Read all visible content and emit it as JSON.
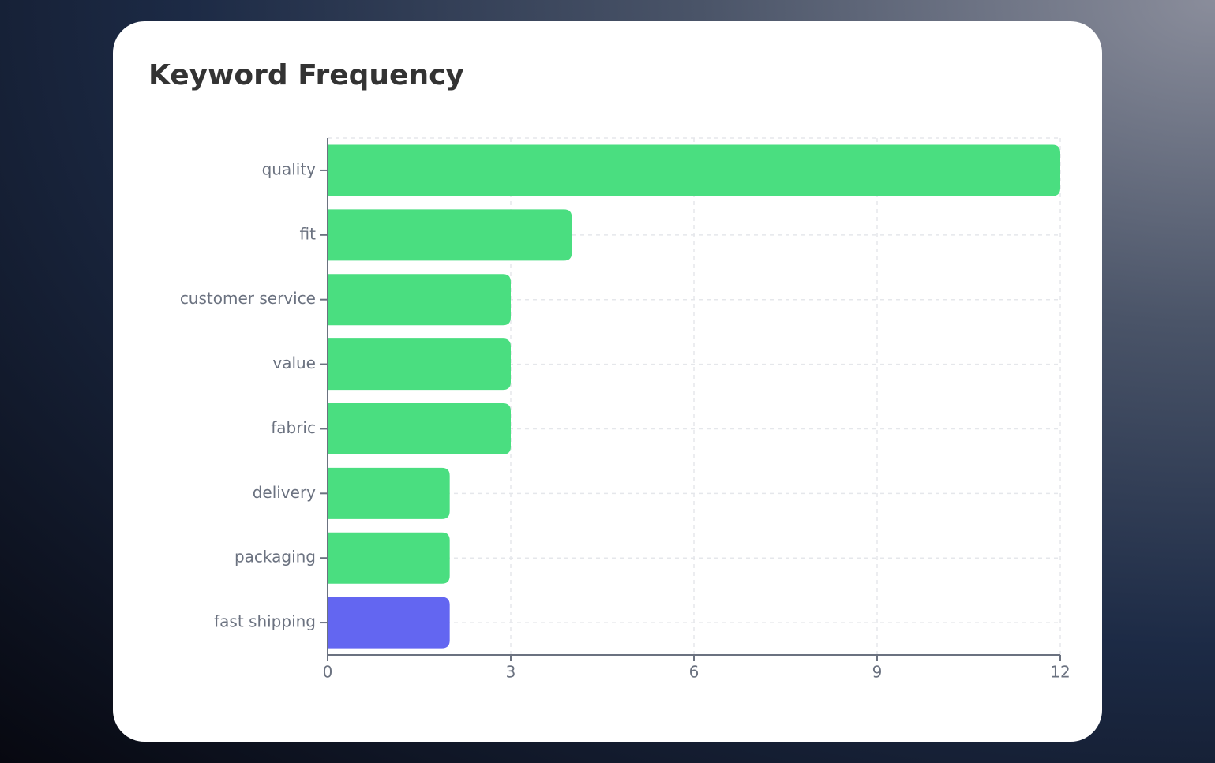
{
  "chart_data": {
    "type": "bar",
    "orientation": "horizontal",
    "title": "Keyword Frequency",
    "categories": [
      "quality",
      "fit",
      "customer service",
      "value",
      "fabric",
      "delivery",
      "packaging",
      "fast shipping"
    ],
    "values": [
      12,
      4,
      3,
      3,
      3,
      2,
      2,
      2
    ],
    "colors": [
      "#4ade80",
      "#4ade80",
      "#4ade80",
      "#4ade80",
      "#4ade80",
      "#4ade80",
      "#4ade80",
      "#6366f1"
    ],
    "xlim": [
      0,
      12
    ],
    "xticks": [
      0,
      3,
      6,
      9,
      12
    ],
    "grid": true
  }
}
